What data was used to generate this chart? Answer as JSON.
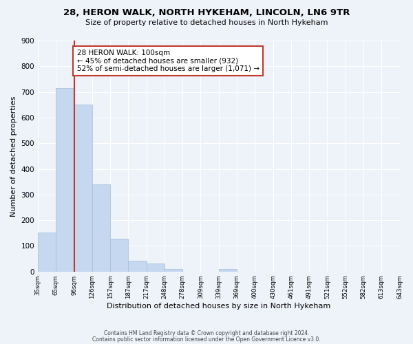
{
  "title1": "28, HERON WALK, NORTH HYKEHAM, LINCOLN, LN6 9TR",
  "title2": "Size of property relative to detached houses in North Hykeham",
  "xlabel": "Distribution of detached houses by size in North Hykeham",
  "ylabel": "Number of detached properties",
  "bar_values": [
    153,
    714,
    651,
    339,
    128,
    42,
    31,
    10,
    0,
    0,
    10,
    0,
    0,
    0,
    0,
    0,
    0,
    0,
    0,
    0
  ],
  "bin_labels": [
    "35sqm",
    "65sqm",
    "96sqm",
    "126sqm",
    "157sqm",
    "187sqm",
    "217sqm",
    "248sqm",
    "278sqm",
    "309sqm",
    "339sqm",
    "369sqm",
    "400sqm",
    "430sqm",
    "461sqm",
    "491sqm",
    "521sqm",
    "552sqm",
    "582sqm",
    "613sqm",
    "643sqm"
  ],
  "bar_color": "#c5d8f0",
  "bar_edgecolor": "#a0bcd8",
  "vline_x": 2,
  "vline_color": "#c0392b",
  "annotation_text": "28 HERON WALK: 100sqm\n← 45% of detached houses are smaller (932)\n52% of semi-detached houses are larger (1,071) →",
  "annotation_box_edgecolor": "#c0392b",
  "ylim": [
    0,
    900
  ],
  "yticks": [
    0,
    100,
    200,
    300,
    400,
    500,
    600,
    700,
    800,
    900
  ],
  "footer1": "Contains HM Land Registry data © Crown copyright and database right 2024.",
  "footer2": "Contains public sector information licensed under the Open Government Licence v3.0.",
  "bg_color": "#eef2f9",
  "grid_color": "#ffffff"
}
